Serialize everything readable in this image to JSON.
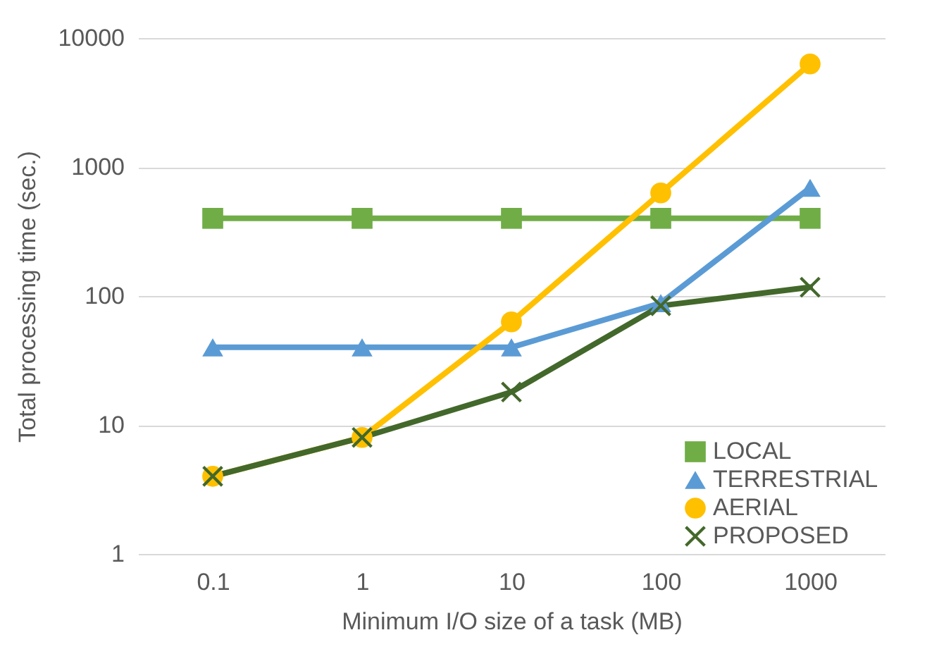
{
  "chart_data": {
    "type": "line",
    "xlabel": "Minimum I/O size of a task (MB)",
    "ylabel": "Total processing time (sec.)",
    "categories": [
      "0.1",
      "1",
      "10",
      "100",
      "1000"
    ],
    "series": [
      {
        "name": "LOCAL",
        "color": "#70ad47",
        "marker": "square",
        "values": [
          400,
          400,
          400,
          400,
          400
        ]
      },
      {
        "name": "TERRESTRIAL",
        "color": "#5b9bd5",
        "marker": "triangle",
        "values": [
          40,
          40,
          40,
          88,
          690
        ]
      },
      {
        "name": "AERIAL",
        "color": "#ffc000",
        "marker": "circle",
        "values": [
          4,
          8,
          63,
          630,
          6300
        ]
      },
      {
        "name": "PROPOSED",
        "color": "#43682b",
        "marker": "cross",
        "values": [
          4,
          8,
          18,
          84,
          117
        ]
      }
    ],
    "log": true,
    "ylim": [
      1,
      10000
    ],
    "yticks": [
      1,
      10,
      100,
      1000,
      10000
    ],
    "grid": "y",
    "legend": "bottom right",
    "line_style": "solid"
  }
}
